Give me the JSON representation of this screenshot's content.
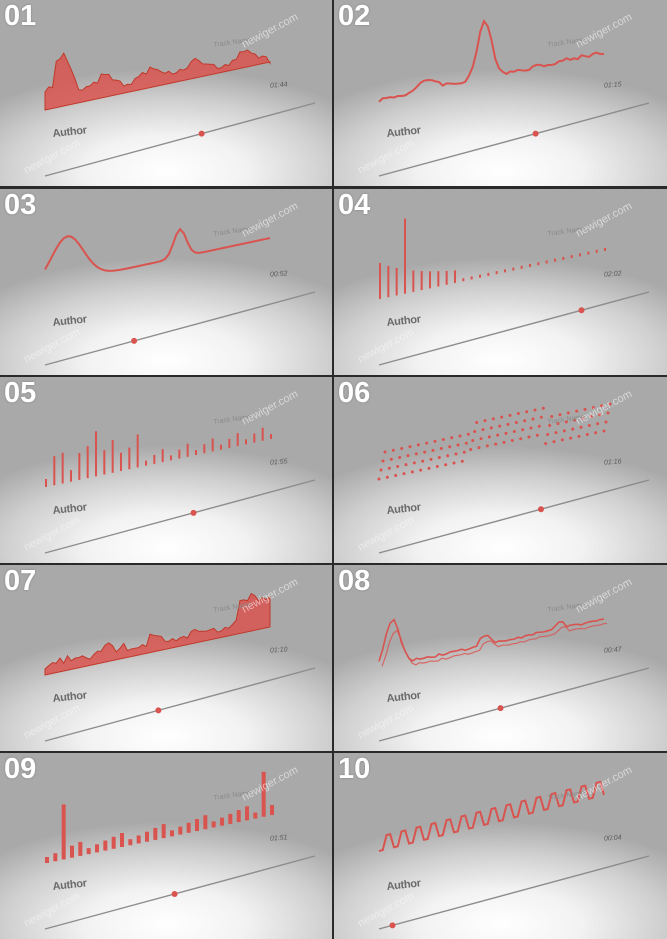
{
  "accent_color": "#d9534f",
  "watermark": "newiger.com",
  "author_label": "Author",
  "track_label": "Track Name",
  "tiles": [
    {
      "number": "01",
      "time": "01:44",
      "style": "filled-wave",
      "progress": 0.58
    },
    {
      "number": "02",
      "time": "01:15",
      "style": "line-peak",
      "progress": 0.58
    },
    {
      "number": "03",
      "time": "00:52",
      "style": "line-wave",
      "progress": 0.33
    },
    {
      "number": "04",
      "time": "02:02",
      "style": "spike-bars",
      "progress": 0.75
    },
    {
      "number": "05",
      "time": "01:55",
      "style": "spike-bars-dots",
      "progress": 0.55
    },
    {
      "number": "06",
      "time": "01:16",
      "style": "dot-matrix",
      "progress": 0.6
    },
    {
      "number": "07",
      "time": "01:10",
      "style": "filled-ribbon",
      "progress": 0.42
    },
    {
      "number": "08",
      "time": "00:47",
      "style": "double-line",
      "progress": 0.45
    },
    {
      "number": "09",
      "time": "01:51",
      "style": "block-bars",
      "progress": 0.48
    },
    {
      "number": "10",
      "time": "00:04",
      "style": "zigzag",
      "progress": 0.05
    }
  ]
}
